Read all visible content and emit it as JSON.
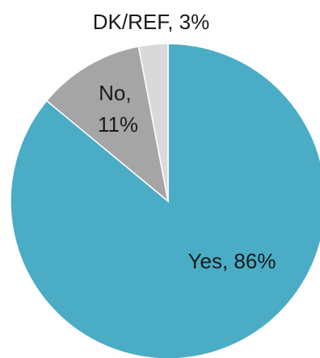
{
  "chart_data": {
    "type": "pie",
    "title": "",
    "start_angle_deg": 0,
    "direction": "clockwise",
    "slices": [
      {
        "label": "Yes",
        "value": 86,
        "text": "Yes, 86%",
        "color": "#4bacc6"
      },
      {
        "label": "No",
        "value": 11,
        "text": "No, 11%",
        "text_lines": [
          "No,",
          "11%"
        ],
        "color": "#a5a5a5"
      },
      {
        "label": "DK/REF",
        "value": 3,
        "text": "DK/REF, 3%",
        "color": "#d9d9d9"
      }
    ]
  }
}
